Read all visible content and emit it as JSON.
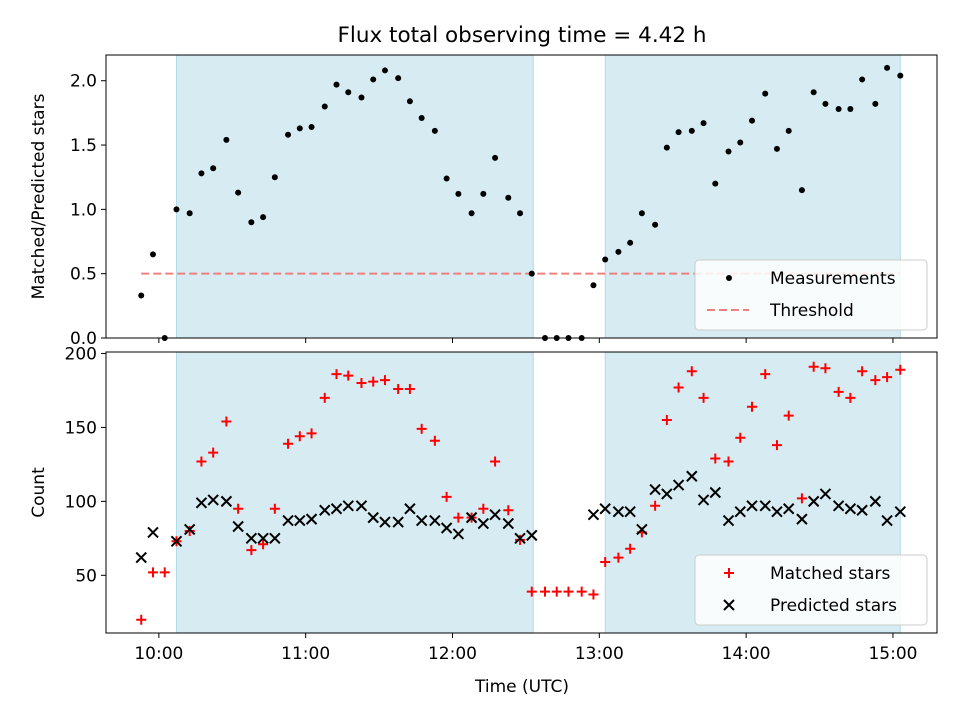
{
  "title": "Flux total observing time = 4.42 h",
  "xlabel": "Time (UTC)",
  "x_ticks": [
    {
      "t": 10.0,
      "label": "10:00"
    },
    {
      "t": 11.0,
      "label": "11:00"
    },
    {
      "t": 12.0,
      "label": "12:00"
    },
    {
      "t": 13.0,
      "label": "13:00"
    },
    {
      "t": 14.0,
      "label": "14:00"
    },
    {
      "t": 15.0,
      "label": "15:00"
    }
  ],
  "colors": {
    "shade": "#add8e6",
    "measurement": "#000000",
    "threshold": "#f08080",
    "matched": "#ff0000",
    "predicted": "#000000"
  },
  "chart_data": [
    {
      "type": "scatter",
      "ylabel": "Matched/Predicted stars",
      "xlim": [
        9.64,
        15.3
      ],
      "ylim": [
        0,
        2.2
      ],
      "y_ticks": [
        {
          "v": 0.0,
          "label": "0.0"
        },
        {
          "v": 0.5,
          "label": "0.5"
        },
        {
          "v": 1.0,
          "label": "1.0"
        },
        {
          "v": 1.5,
          "label": "1.5"
        },
        {
          "v": 2.0,
          "label": "2.0"
        }
      ],
      "shaded_intervals": [
        [
          10.12,
          12.55
        ],
        [
          13.04,
          15.05
        ]
      ],
      "threshold": {
        "value": 0.5,
        "x_range": [
          9.88,
          15.05
        ]
      },
      "legend": {
        "location": "lower-right",
        "entries": [
          "Measurements",
          "Threshold"
        ]
      },
      "series": [
        {
          "name": "Measurements",
          "x": [
            9.88,
            9.96,
            10.04,
            10.12,
            10.21,
            10.29,
            10.37,
            10.46,
            10.54,
            10.63,
            10.71,
            10.79,
            10.88,
            10.96,
            11.04,
            11.13,
            11.21,
            11.29,
            11.38,
            11.46,
            11.54,
            11.63,
            11.71,
            11.79,
            11.88,
            11.96,
            12.04,
            12.13,
            12.21,
            12.29,
            12.38,
            12.46,
            12.54,
            12.63,
            12.71,
            12.79,
            12.88,
            12.96,
            13.04,
            13.13,
            13.21,
            13.29,
            13.38,
            13.46,
            13.54,
            13.63,
            13.71,
            13.79,
            13.88,
            13.96,
            14.04,
            14.13,
            14.21,
            14.29,
            14.38,
            14.46,
            14.54,
            14.63,
            14.71,
            14.79,
            14.88,
            14.96,
            15.05
          ],
          "y": [
            0.33,
            0.65,
            0.0,
            1.0,
            0.97,
            1.28,
            1.32,
            1.54,
            1.13,
            0.9,
            0.94,
            1.25,
            1.58,
            1.63,
            1.64,
            1.8,
            1.97,
            1.91,
            1.87,
            2.01,
            2.08,
            2.02,
            1.84,
            1.71,
            1.61,
            1.24,
            1.12,
            0.97,
            1.12,
            1.4,
            1.09,
            0.97,
            0.5,
            0.0,
            0.0,
            0.0,
            0.0,
            0.41,
            0.61,
            0.67,
            0.74,
            0.97,
            0.88,
            1.48,
            1.6,
            1.61,
            1.67,
            1.2,
            1.45,
            1.52,
            1.69,
            1.9,
            1.47,
            1.61,
            1.15,
            1.91,
            1.82,
            1.78,
            1.78,
            2.01,
            1.82,
            2.1,
            2.04
          ]
        }
      ]
    },
    {
      "type": "scatter",
      "ylabel": "Count",
      "xlim": [
        9.64,
        15.3
      ],
      "ylim": [
        11,
        201
      ],
      "y_ticks": [
        {
          "v": 50,
          "label": "50"
        },
        {
          "v": 100,
          "label": "100"
        },
        {
          "v": 150,
          "label": "150"
        },
        {
          "v": 200,
          "label": "200"
        }
      ],
      "shaded_intervals": [
        [
          10.12,
          12.55
        ],
        [
          13.04,
          15.05
        ]
      ],
      "legend": {
        "location": "lower-right",
        "entries": [
          "Matched stars",
          "Predicted stars"
        ]
      },
      "series": [
        {
          "name": "Matched stars",
          "marker": "plus",
          "x": [
            9.88,
            9.96,
            10.04,
            10.12,
            10.21,
            10.29,
            10.37,
            10.46,
            10.54,
            10.63,
            10.71,
            10.79,
            10.88,
            10.96,
            11.04,
            11.13,
            11.21,
            11.29,
            11.38,
            11.46,
            11.54,
            11.63,
            11.71,
            11.79,
            11.88,
            11.96,
            12.04,
            12.13,
            12.21,
            12.29,
            12.38,
            12.46,
            12.54,
            12.63,
            12.71,
            12.79,
            12.88,
            12.96,
            13.04,
            13.13,
            13.21,
            13.29,
            13.38,
            13.46,
            13.54,
            13.63,
            13.71,
            13.79,
            13.88,
            13.96,
            14.04,
            14.13,
            14.21,
            14.29,
            14.38,
            14.46,
            14.54,
            14.63,
            14.71,
            14.79,
            14.88,
            14.96,
            15.05
          ],
          "y": [
            20,
            52,
            52,
            73,
            80,
            127,
            133,
            154,
            95,
            67,
            71,
            95,
            139,
            144,
            146,
            170,
            186,
            185,
            180,
            181,
            182,
            176,
            176,
            149,
            141,
            103,
            89,
            89,
            95,
            127,
            94,
            74,
            39,
            39,
            39,
            39,
            39,
            37,
            59,
            62,
            68,
            79,
            97,
            155,
            177,
            188,
            170,
            129,
            127,
            143,
            164,
            186,
            138,
            158,
            102,
            191,
            190,
            174,
            170,
            188,
            182,
            184,
            189
          ]
        },
        {
          "name": "Predicted stars",
          "marker": "x",
          "x": [
            9.88,
            9.96,
            10.12,
            10.21,
            10.29,
            10.37,
            10.46,
            10.54,
            10.63,
            10.71,
            10.79,
            10.88,
            10.96,
            11.04,
            11.13,
            11.21,
            11.29,
            11.38,
            11.46,
            11.54,
            11.63,
            11.71,
            11.79,
            11.88,
            11.96,
            12.04,
            12.13,
            12.21,
            12.29,
            12.38,
            12.46,
            12.54,
            12.96,
            13.04,
            13.13,
            13.21,
            13.29,
            13.38,
            13.46,
            13.54,
            13.63,
            13.71,
            13.79,
            13.88,
            13.96,
            14.04,
            14.13,
            14.21,
            14.29,
            14.38,
            14.46,
            14.54,
            14.63,
            14.71,
            14.79,
            14.88,
            14.96,
            15.05
          ],
          "y": [
            62,
            79,
            73,
            81,
            99,
            101,
            100,
            83,
            75,
            75,
            75,
            87,
            87,
            88,
            94,
            95,
            97,
            97,
            89,
            86,
            86,
            95,
            87,
            87,
            82,
            78,
            89,
            85,
            91,
            85,
            75,
            77,
            91,
            95,
            93,
            93,
            81,
            108,
            105,
            111,
            117,
            101,
            106,
            87,
            93,
            97,
            97,
            93,
            95,
            88,
            100,
            105,
            97,
            95,
            94,
            100,
            87,
            93
          ]
        }
      ]
    }
  ]
}
